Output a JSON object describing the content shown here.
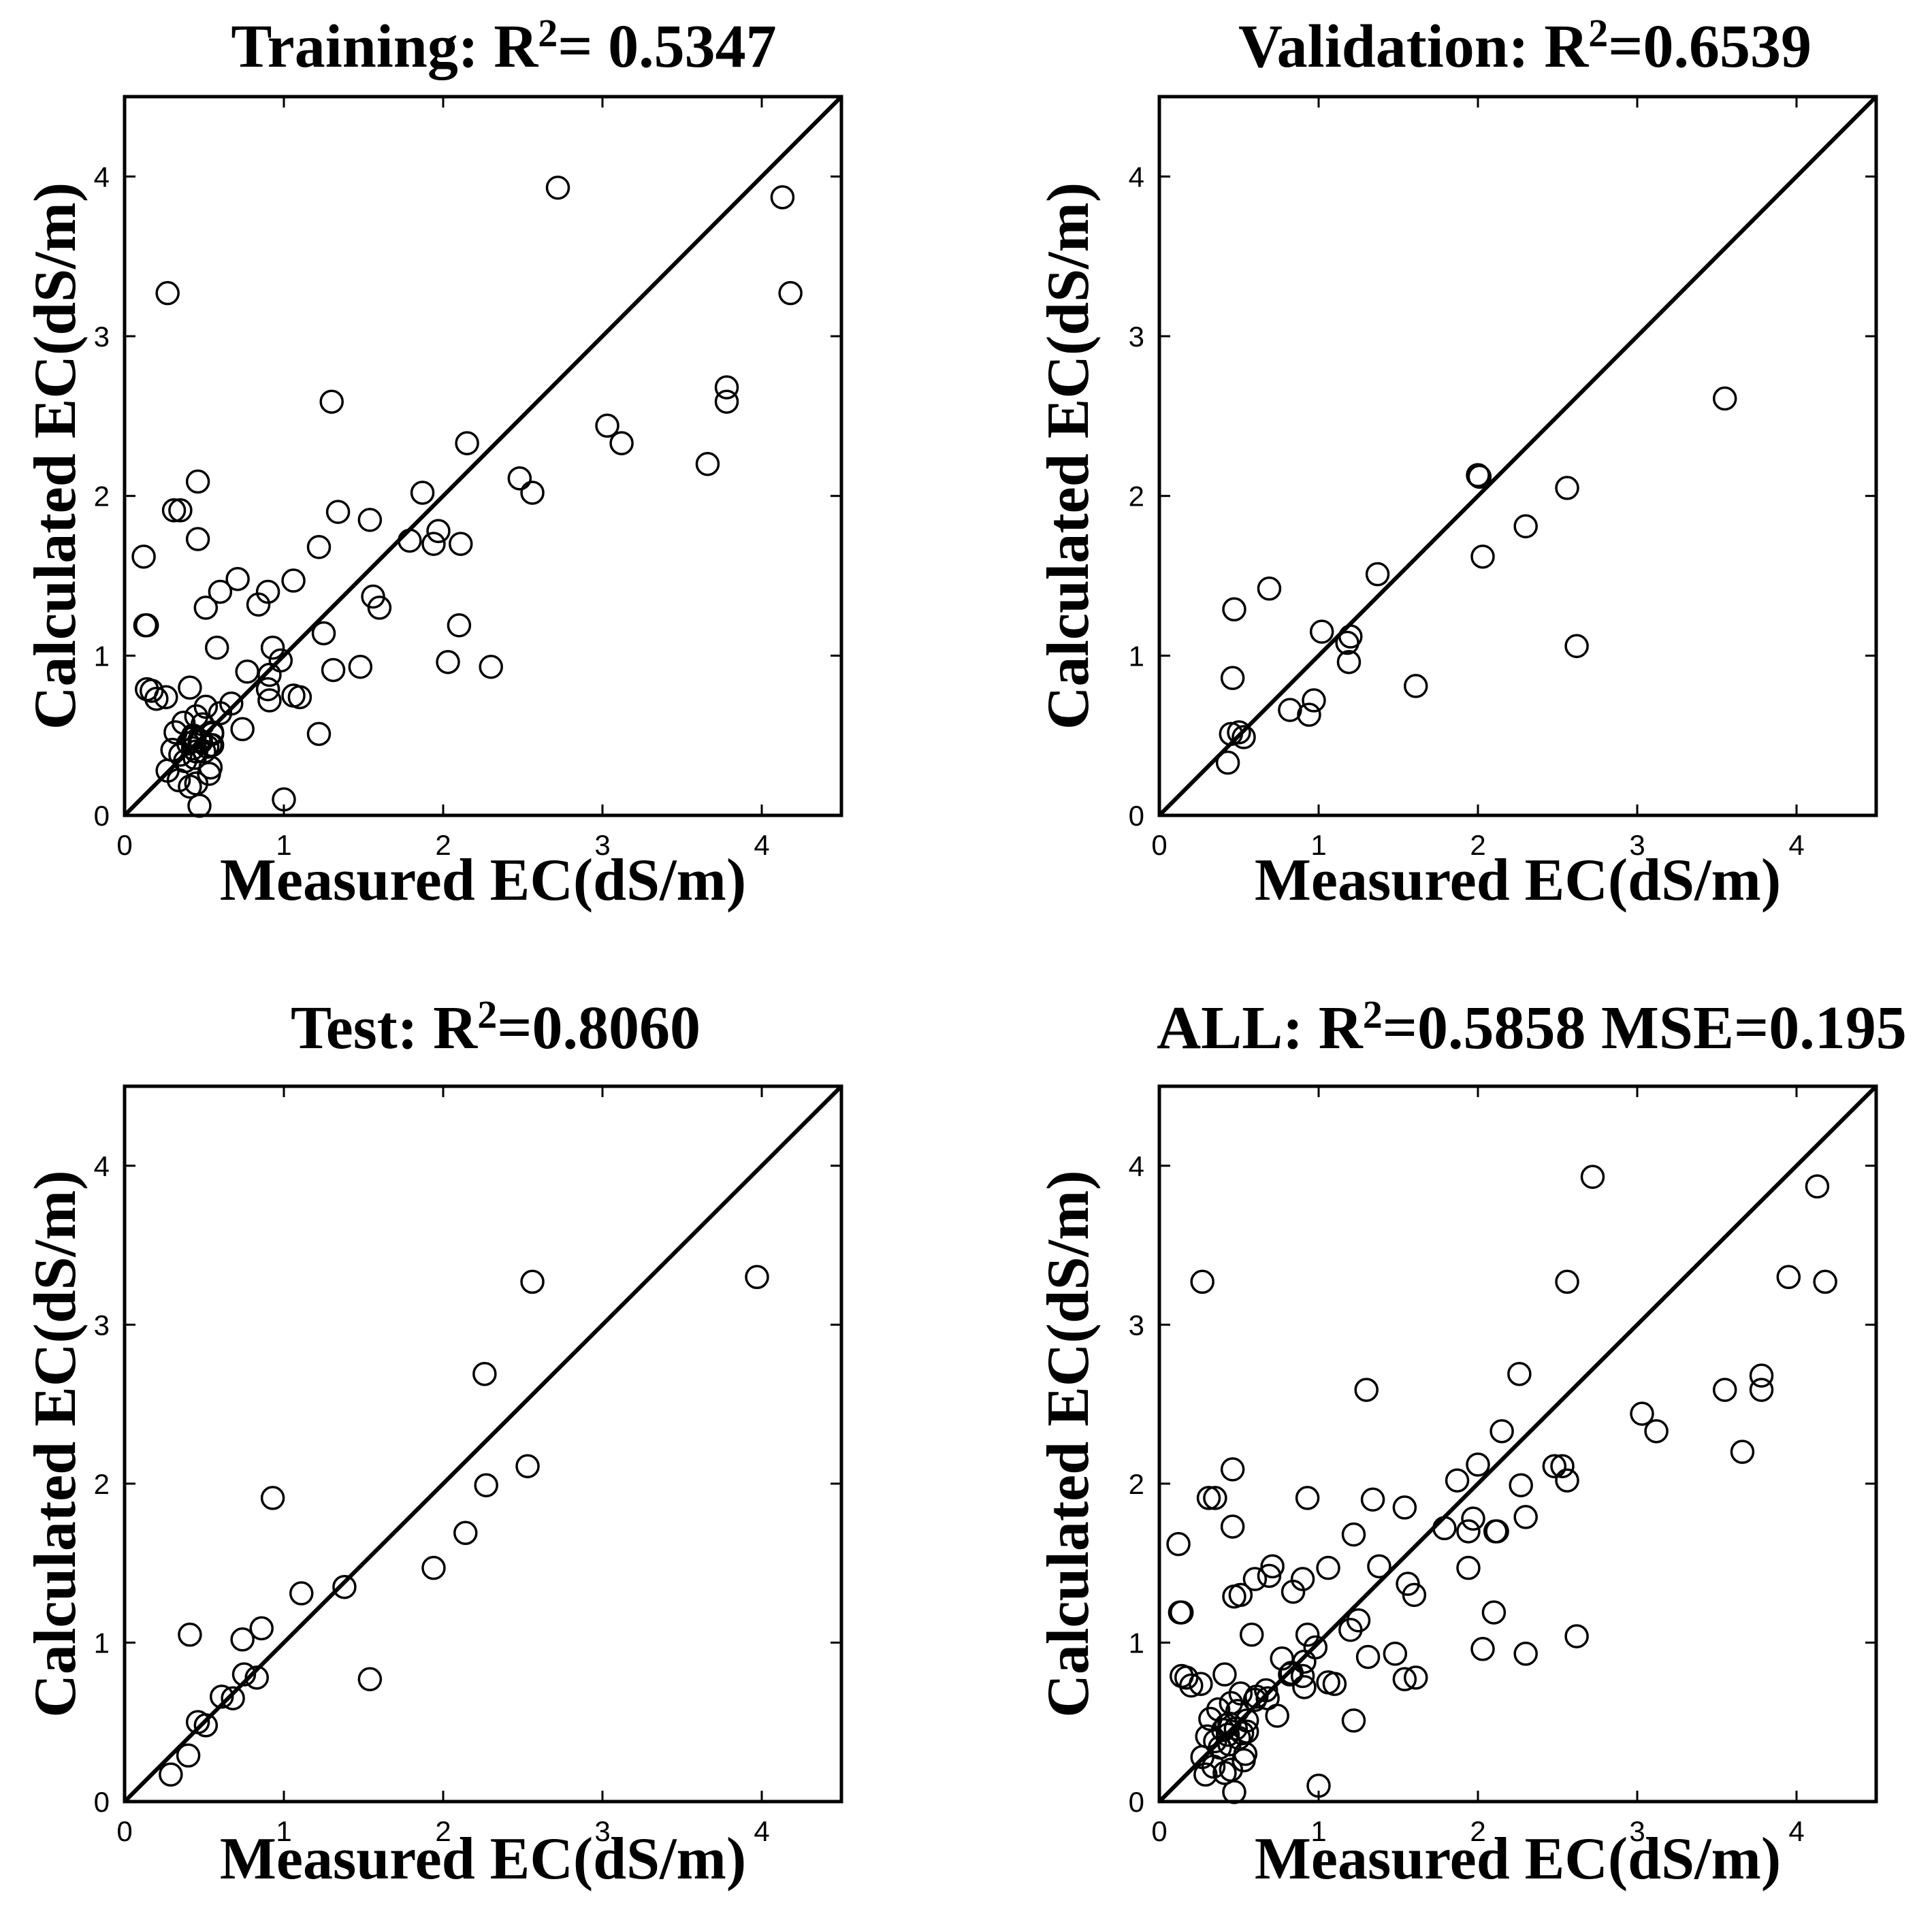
{
  "chart_data": [
    {
      "type": "scatter",
      "title_prefix": "Training: R",
      "title_sup": "2",
      "title_suffix": "= 0.5347",
      "xlabel": "Measured EC(dS/m)",
      "ylabel": "Calculated EC(dS/m)",
      "xlim": [
        0,
        4.5
      ],
      "ylim": [
        0,
        4.5
      ],
      "xticks": [
        "0",
        "1",
        "2",
        "3",
        "4"
      ],
      "yticks": [
        "0",
        "1",
        "2",
        "3",
        "4"
      ],
      "reference_line": "y = x",
      "x": [
        2.72,
        4.13,
        0.27,
        4.18,
        3.78,
        3.78,
        1.3,
        3.03,
        3.12,
        2.15,
        3.66,
        2.48,
        2.56,
        1.87,
        0.46,
        0.31,
        0.35,
        1.34,
        1.54,
        0.46,
        1.97,
        1.22,
        2.11,
        1.94,
        1.79,
        0.12,
        0.71,
        1.06,
        0.6,
        1.56,
        1.6,
        0.51,
        0.84,
        0.9,
        0.13,
        0.14,
        1.25,
        2.1,
        0.58,
        0.93,
        0.98,
        0.91,
        1.31,
        1.48,
        2.03,
        2.3,
        0.77,
        0.17,
        0.41,
        0.14,
        0.26,
        0.2,
        0.9,
        1.06,
        1.1,
        0.91,
        0.6,
        0.67,
        0.74,
        0.51,
        0.45,
        0.37,
        0.49,
        0.32,
        0.55,
        0.44,
        0.42,
        0.48,
        0.4,
        0.55,
        0.52,
        0.43,
        0.5,
        0.3,
        0.35,
        1.22,
        0.44,
        0.38,
        0.54,
        0.27,
        0.34,
        0.53,
        0.41,
        0.45,
        0.47,
        0.43,
        0.54,
        0.55,
        0.45,
        0.47,
        1.0
      ],
      "y": [
        3.93,
        3.87,
        3.27,
        3.27,
        2.68,
        2.59,
        2.59,
        2.44,
        2.33,
        2.33,
        2.2,
        2.11,
        2.02,
        2.02,
        2.09,
        1.91,
        1.91,
        1.9,
        1.85,
        1.73,
        1.78,
        1.68,
        1.7,
        1.7,
        1.72,
        1.62,
        1.48,
        1.47,
        1.4,
        1.37,
        1.3,
        1.3,
        1.32,
        1.4,
        1.19,
        1.19,
        1.14,
        1.19,
        1.05,
        1.05,
        0.97,
        0.88,
        0.91,
        0.93,
        0.96,
        0.93,
        0.9,
        0.78,
        0.8,
        0.79,
        0.74,
        0.73,
        0.79,
        0.75,
        0.74,
        0.72,
        0.64,
        0.7,
        0.54,
        0.68,
        0.62,
        0.58,
        0.57,
        0.52,
        0.51,
        0.49,
        0.48,
        0.46,
        0.45,
        0.44,
        0.43,
        0.42,
        0.4,
        0.41,
        0.38,
        0.51,
        0.36,
        0.34,
        0.3,
        0.28,
        0.22,
        0.26,
        0.18,
        0.2,
        0.47,
        0.5,
        0.44,
        0.52,
        0.4,
        0.06,
        0.1
      ]
    },
    {
      "type": "scatter",
      "title_prefix": "Validation: R",
      "title_sup": "2",
      "title_suffix": "=0.6539",
      "xlabel": "Measured EC(dS/m)",
      "ylabel": "Calculated EC(dS/m)",
      "xlim": [
        0,
        4.5
      ],
      "ylim": [
        0,
        4.5
      ],
      "xticks": [
        "0",
        "1",
        "2",
        "3",
        "4"
      ],
      "yticks": [
        "0",
        "1",
        "2",
        "3",
        "4"
      ],
      "reference_line": "y = x",
      "x": [
        3.55,
        2.0,
        2.01,
        2.56,
        2.3,
        2.03,
        1.37,
        0.69,
        0.47,
        1.02,
        1.2,
        1.18,
        2.62,
        1.19,
        0.46,
        1.61,
        0.97,
        0.82,
        0.94,
        0.5,
        0.45,
        0.53,
        0.43
      ],
      "y": [
        2.61,
        2.13,
        2.12,
        2.05,
        1.81,
        1.62,
        1.51,
        1.42,
        1.29,
        1.15,
        1.12,
        1.08,
        1.06,
        0.96,
        0.86,
        0.81,
        0.72,
        0.66,
        0.63,
        0.52,
        0.51,
        0.49,
        0.33
      ]
    },
    {
      "type": "scatter",
      "title_prefix": "Test: R",
      "title_sup": "2",
      "title_suffix": "=0.8060",
      "xlabel": "Measured EC(dS/m)",
      "ylabel": "Calculated EC(dS/m)",
      "xlim": [
        0,
        4.5
      ],
      "ylim": [
        0,
        4.5
      ],
      "xticks": [
        "0",
        "1",
        "2",
        "3",
        "4"
      ],
      "yticks": [
        "0",
        "1",
        "2",
        "3",
        "4"
      ],
      "reference_line": "y = x",
      "x": [
        3.97,
        2.56,
        2.26,
        2.27,
        2.53,
        0.93,
        2.14,
        1.94,
        1.11,
        1.38,
        0.86,
        0.41,
        0.74,
        1.54,
        0.83,
        0.75,
        0.61,
        0.68,
        0.46,
        0.51,
        0.4,
        0.29
      ],
      "y": [
        3.3,
        3.27,
        2.69,
        1.99,
        2.11,
        1.91,
        1.69,
        1.47,
        1.31,
        1.35,
        1.09,
        1.05,
        1.02,
        0.77,
        0.78,
        0.8,
        0.66,
        0.65,
        0.5,
        0.48,
        0.29,
        0.17
      ]
    },
    {
      "type": "scatter",
      "title_prefix": "ALL: R",
      "title_sup": "2",
      "title_suffix": "=0.5858 MSE=0.195",
      "xlabel": "Measured EC(dS/m)",
      "ylabel": "Calculated EC(dS/m)",
      "xlim": [
        0,
        4.5
      ],
      "ylim": [
        0,
        4.5
      ],
      "xticks": [
        "0",
        "1",
        "2",
        "3",
        "4"
      ],
      "yticks": [
        "0",
        "1",
        "2",
        "3",
        "4"
      ],
      "reference_line": "y = x",
      "x": [
        2.72,
        4.13,
        0.27,
        2.56,
        4.18,
        3.95,
        3.78,
        3.78,
        1.3,
        2.26,
        3.55,
        3.03,
        3.12,
        2.15,
        3.66,
        2.0,
        2.48,
        2.53,
        2.56,
        2.27,
        1.87,
        0.46,
        0.31,
        0.35,
        0.93,
        1.34,
        1.54,
        0.46,
        1.97,
        1.22,
        2.11,
        2.12,
        1.94,
        1.79,
        2.3,
        0.12,
        0.71,
        1.06,
        0.6,
        1.38,
        1.56,
        1.6,
        1.94,
        0.51,
        0.84,
        0.9,
        0.13,
        0.14,
        1.25,
        2.1,
        0.58,
        0.93,
        0.98,
        0.91,
        1.31,
        1.48,
        1.2,
        2.03,
        2.62,
        2.3,
        0.77,
        0.17,
        0.41,
        0.14,
        0.26,
        0.2,
        0.9,
        1.06,
        1.1,
        0.91,
        0.6,
        0.67,
        0.74,
        0.51,
        0.45,
        0.37,
        0.49,
        0.32,
        0.55,
        0.44,
        0.42,
        0.48,
        0.4,
        0.55,
        0.52,
        0.43,
        0.5,
        0.3,
        0.35,
        1.22,
        0.44,
        0.38,
        0.54,
        0.27,
        0.34,
        0.53,
        0.41,
        0.45,
        1.54,
        1.61,
        0.82,
        0.69,
        0.47,
        0.83,
        0.61,
        0.68,
        0.47,
        1.0,
        0.29
      ],
      "y": [
        3.93,
        3.87,
        3.27,
        3.27,
        3.27,
        3.3,
        2.68,
        2.59,
        2.59,
        2.69,
        2.59,
        2.44,
        2.33,
        2.33,
        2.2,
        2.12,
        2.11,
        2.11,
        2.02,
        1.99,
        2.02,
        2.09,
        1.91,
        1.91,
        1.91,
        1.9,
        1.85,
        1.73,
        1.78,
        1.68,
        1.7,
        1.7,
        1.7,
        1.72,
        1.79,
        1.62,
        1.48,
        1.47,
        1.4,
        1.48,
        1.37,
        1.3,
        1.47,
        1.3,
        1.32,
        1.4,
        1.19,
        1.19,
        1.14,
        1.19,
        1.05,
        1.05,
        0.97,
        0.88,
        0.91,
        0.93,
        1.08,
        0.96,
        1.04,
        0.93,
        0.9,
        0.78,
        0.8,
        0.79,
        0.74,
        0.73,
        0.79,
        0.75,
        0.74,
        0.72,
        0.64,
        0.7,
        0.54,
        0.68,
        0.62,
        0.58,
        0.57,
        0.52,
        0.51,
        0.49,
        0.48,
        0.46,
        0.45,
        0.44,
        0.43,
        0.42,
        0.4,
        0.41,
        0.38,
        0.51,
        0.36,
        0.34,
        0.3,
        0.28,
        0.22,
        0.26,
        0.18,
        0.2,
        0.77,
        0.78,
        0.8,
        1.42,
        1.29,
        0.81,
        0.66,
        0.65,
        0.06,
        0.1,
        0.17
      ]
    }
  ]
}
